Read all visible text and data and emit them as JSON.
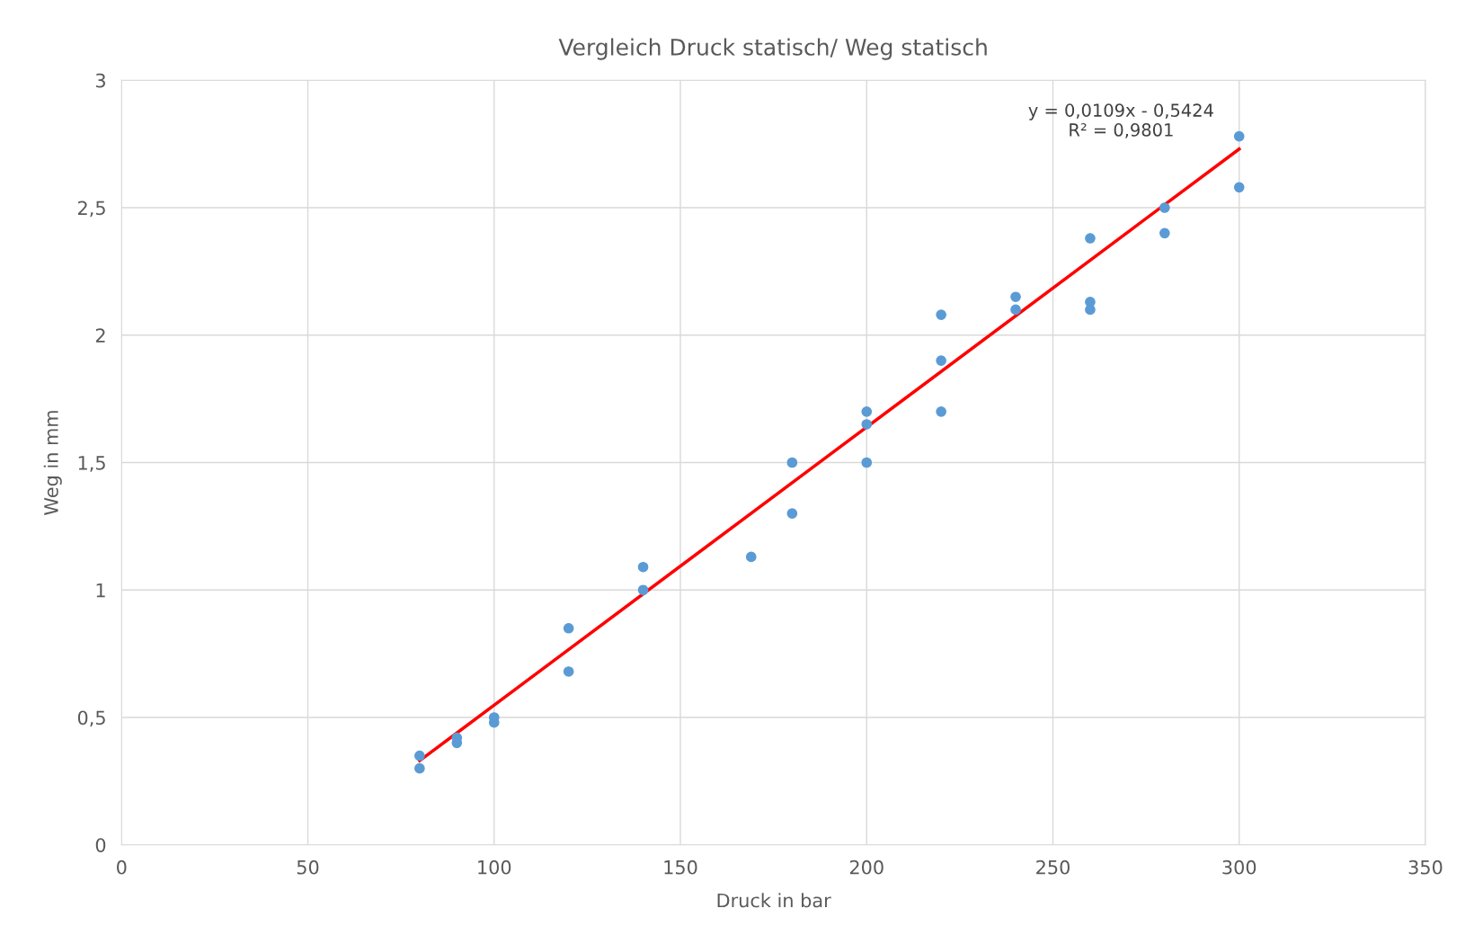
{
  "chart_data": {
    "type": "scatter",
    "title": "Vergleich Druck statisch/ Weg statisch",
    "xlabel": "Druck in bar",
    "ylabel": "Weg in mm",
    "series": [
      {
        "color": "#5b9bd5",
        "marker": "circle",
        "x": [
          80,
          80,
          90,
          90,
          100,
          100,
          120,
          120,
          140,
          140,
          169,
          180,
          180,
          200,
          200,
          200,
          220,
          220,
          220,
          240,
          240,
          260,
          260,
          260,
          280,
          280,
          300,
          300
        ],
        "values": [
          0.35,
          0.3,
          0.42,
          0.4,
          0.5,
          0.48,
          0.85,
          0.68,
          1.09,
          1.0,
          1.13,
          1.5,
          1.3,
          1.7,
          1.65,
          1.5,
          2.08,
          1.9,
          1.7,
          2.15,
          2.1,
          2.38,
          2.13,
          2.1,
          2.5,
          2.4,
          2.78,
          2.58
        ]
      },
      {
        "type": "line",
        "color": "#ff0000",
        "x": [
          80,
          300
        ],
        "values": [
          0.33,
          2.73
        ]
      }
    ],
    "annotations": [
      {
        "text": "y = 0,0109x - 0,5424\nR² = 0,9801",
        "x": 300,
        "y": 2.73
      }
    ],
    "xlim": [
      0,
      350
    ],
    "xticks": [
      0,
      50,
      100,
      150,
      200,
      250,
      300,
      350
    ],
    "ylim": [
      0,
      3
    ],
    "yticks": [
      {
        "value": 0,
        "label": "0"
      },
      {
        "value": 0.5,
        "label": "0,5"
      },
      {
        "value": 1,
        "label": "1"
      },
      {
        "value": 1.5,
        "label": "1,5"
      },
      {
        "value": 2,
        "label": "2"
      },
      {
        "value": 2.5,
        "label": "2,5"
      },
      {
        "value": 3,
        "label": "3"
      }
    ],
    "grid": true,
    "legend": false
  }
}
